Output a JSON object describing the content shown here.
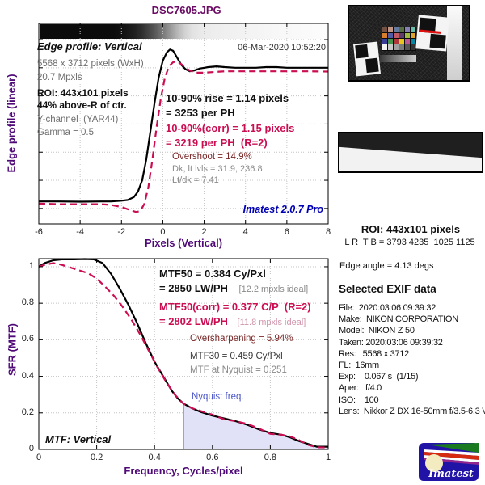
{
  "window_title": "_DSC7605.JPG",
  "colors": {
    "accent_crimson": "#cb0e52",
    "axis_purple": "#4f0a78",
    "title_purple": "#6b0a64",
    "watermark_navy": "#0000b4",
    "overshoot_red": "#7a2828",
    "nyquist_blue": "#4a55c8",
    "nyquist_fill": "#e1e2f8"
  },
  "edge_panel": {
    "title": "Edge profile: Vertical",
    "date": "06-Mar-2020 10:52:20",
    "size_line": "5568 x 3712 pixels (WxH)",
    "mpx_line": "20.7 Mpxls",
    "roi_line1": "ROI: 443x101 pixels",
    "roi_line2": "44% above-R of ctr.",
    "channel_line": "Y-channel  (YAR44)",
    "gamma_line": "Gamma = 0.5",
    "rise_line1": "10-90% rise = 1.14 pixels",
    "rise_line2": "= 3253 per PH",
    "corr_line1": "10-90%(corr) = 1.15 pixels",
    "corr_line2": "= 3219 per PH  (R=2)",
    "overshoot": "Overshoot = 14.9%",
    "levels": "Dk, lt lvls = 31.9, 236.8",
    "ratio": "Lt/dk = 7.41",
    "watermark": "Imatest 2.0.7 Pro",
    "xlabel": "Pixels (Vertical)",
    "ylabel": "Edge profile (linear)"
  },
  "mtf_panel": {
    "mtf50_line1": "MTF50 = 0.384 Cy/Pxl",
    "mtf50_line2": "= 2850 LW/PH",
    "mtf50_note": "[12.2 mpxls ideal]",
    "corr_line1": "MTF50(corr) = 0.377 C/P  (R=2)",
    "corr_line2": "= 2802 LW/PH",
    "corr_note": "[11.8 mpxls ideal]",
    "oversharp": "Oversharpening = 5.94%",
    "mtf30": "MTF30 = 0.459 Cy/Pxl",
    "nyquist_val": "MTF at Nyquist = 0.251",
    "nyquist_label": "Nyquist freq.",
    "corner_label": "MTF: Vertical",
    "xlabel": "Frequency, Cycles/pixel",
    "ylabel": "SFR (MTF)"
  },
  "right_panel": {
    "roi_title": "ROI: 443x101 pixels",
    "roi_coords": "L R  T B = 3793 4235  1025 1125",
    "edge_angle": "Edge angle = 4.13 degs",
    "exif_title": "Selected EXIF data",
    "exif_lines": [
      "File:  2020:03:06 09:39:32",
      "Make:  NIKON CORPORATION",
      "Model:  NIKON Z 50",
      "Taken: 2020:03:06 09:39:32",
      "Res:   5568 x 3712",
      "FL:  16mm",
      "Exp:    0.067 s  (1/15)",
      "Aper:   f/4.0",
      "ISO:    100",
      "Lens:  Nikkor Z DX 16-50mm f/3.5-6.3 V"
    ]
  },
  "logo_text": "Imatest",
  "thumbnail_colors": [
    "#735244",
    "#c29682",
    "#627a9d",
    "#576c43",
    "#8580b1",
    "#67bdaa",
    "#d67e2c",
    "#505ba6",
    "#c15a63",
    "#5e3c6c",
    "#9dbc40",
    "#e0a32e",
    "#383d96",
    "#469449",
    "#af363c",
    "#e7c71f",
    "#bb5695",
    "#0885a1",
    "#f3f3f2",
    "#c8c8c8",
    "#a0a0a0",
    "#7a7a79",
    "#555555",
    "#343434"
  ],
  "chart_data": [
    {
      "type": "line",
      "title": "Edge profile: Vertical",
      "xlabel": "Pixels (Vertical)",
      "ylabel": "Edge profile (linear)",
      "xlim": [
        -6,
        8
      ],
      "ylim": [
        -0.11,
        1.315
      ],
      "xticks": [
        -6,
        -4,
        -2,
        0,
        2,
        4,
        6,
        8
      ],
      "xticklabels": [
        "-6",
        "-4",
        "-2",
        "0",
        "2",
        "4",
        "6",
        "8"
      ],
      "yticks": [
        0,
        0.2,
        0.4,
        0.6,
        0.8,
        1.0,
        1.2
      ],
      "yticklabels": [],
      "grid": true,
      "series": [
        {
          "name": "edge profile (uncorrected)",
          "color": "#000000",
          "dash": "",
          "points": [
            [
              -6,
              0.05
            ],
            [
              -5,
              0.05
            ],
            [
              -4,
              0.048
            ],
            [
              -3,
              0.05
            ],
            [
              -2.5,
              0.05
            ],
            [
              -2,
              0.055
            ],
            [
              -1.7,
              0.06
            ],
            [
              -1.4,
              0.08
            ],
            [
              -1.2,
              0.12
            ],
            [
              -1.0,
              0.2
            ],
            [
              -0.8,
              0.35
            ],
            [
              -0.6,
              0.55
            ],
            [
              -0.4,
              0.75
            ],
            [
              -0.2,
              0.93
            ],
            [
              0,
              1.05
            ],
            [
              0.2,
              1.11
            ],
            [
              0.35,
              1.13
            ],
            [
              0.5,
              1.12
            ],
            [
              0.7,
              1.07
            ],
            [
              0.9,
              1.02
            ],
            [
              1.1,
              0.99
            ],
            [
              1.3,
              0.975
            ],
            [
              1.5,
              0.98
            ],
            [
              1.8,
              0.995
            ],
            [
              2.2,
              1.005
            ],
            [
              2.6,
              1.01
            ],
            [
              3,
              1.005
            ],
            [
              3.5,
              1.0
            ],
            [
              4,
              1.0
            ],
            [
              4.5,
              1.0
            ],
            [
              5,
              1.005
            ],
            [
              5.5,
              1.005
            ],
            [
              6,
              1.0
            ],
            [
              6.5,
              1.0
            ],
            [
              7,
              1.0
            ],
            [
              7.5,
              1.0
            ],
            [
              8,
              1.0
            ]
          ]
        },
        {
          "name": "edge profile corrected (R=2)",
          "color": "#cb0e52",
          "dash": "8 5",
          "points": [
            [
              -6,
              0.035
            ],
            [
              -5,
              0.03
            ],
            [
              -4,
              0.03
            ],
            [
              -3,
              0.03
            ],
            [
              -2.5,
              0.025
            ],
            [
              -2,
              0.01
            ],
            [
              -1.6,
              -0.01
            ],
            [
              -1.3,
              -0.025
            ],
            [
              -1.1,
              -0.02
            ],
            [
              -0.9,
              0.03
            ],
            [
              -0.7,
              0.15
            ],
            [
              -0.5,
              0.35
            ],
            [
              -0.3,
              0.58
            ],
            [
              -0.1,
              0.78
            ],
            [
              0.1,
              0.93
            ],
            [
              0.3,
              1.01
            ],
            [
              0.5,
              1.04
            ],
            [
              0.7,
              1.045
            ],
            [
              0.9,
              1.025
            ],
            [
              1.1,
              1.0
            ],
            [
              1.3,
              0.98
            ],
            [
              1.6,
              0.965
            ],
            [
              2,
              0.965
            ],
            [
              2.5,
              0.97
            ],
            [
              3,
              0.975
            ],
            [
              4,
              0.975
            ],
            [
              5,
              0.975
            ],
            [
              6,
              0.975
            ],
            [
              7,
              0.975
            ],
            [
              8,
              0.973
            ]
          ]
        }
      ],
      "annotations": [
        "10-90% rise = 1.14 pixels = 3253 per PH",
        "10-90%(corr) = 1.15 pixels = 3219 per PH (R=2)",
        "Overshoot = 14.9%",
        "Dk, lt lvls = 31.9, 236.8",
        "Lt/dk = 7.41"
      ]
    },
    {
      "type": "line",
      "title": "MTF: Vertical",
      "xlabel": "Frequency, Cycles/pixel",
      "ylabel": "SFR (MTF)",
      "xlim": [
        0,
        1
      ],
      "ylim": [
        0,
        1.044
      ],
      "xticks": [
        0,
        0.2,
        0.4,
        0.6,
        0.8,
        1
      ],
      "xticklabels": [
        "0",
        "0.2",
        "0.4",
        "0.6",
        "0.8",
        "1"
      ],
      "yticks": [
        0,
        0.2,
        0.4,
        0.6,
        0.8,
        1
      ],
      "yticklabels": [
        "0",
        "0.2",
        "0.4",
        "0.6",
        "0.8",
        "1"
      ],
      "grid": true,
      "nyquist": {
        "x": 0.5,
        "y_at": 0.251,
        "fill": "#e1e2f8",
        "line_color": "#9aa0dc"
      },
      "series": [
        {
          "name": "MTF (uncorrected)",
          "color": "#000000",
          "dash": "",
          "points": [
            [
              0,
              1.0
            ],
            [
              0.02,
              1.02
            ],
            [
              0.05,
              1.035
            ],
            [
              0.08,
              1.04
            ],
            [
              0.12,
              1.04
            ],
            [
              0.16,
              1.042
            ],
            [
              0.19,
              1.04
            ],
            [
              0.22,
              1.02
            ],
            [
              0.25,
              0.96
            ],
            [
              0.28,
              0.88
            ],
            [
              0.31,
              0.79
            ],
            [
              0.34,
              0.69
            ],
            [
              0.37,
              0.58
            ],
            [
              0.4,
              0.48
            ],
            [
              0.43,
              0.4
            ],
            [
              0.46,
              0.32
            ],
            [
              0.48,
              0.28
            ],
            [
              0.5,
              0.251
            ],
            [
              0.53,
              0.225
            ],
            [
              0.56,
              0.205
            ],
            [
              0.6,
              0.185
            ],
            [
              0.64,
              0.17
            ],
            [
              0.68,
              0.155
            ],
            [
              0.72,
              0.135
            ],
            [
              0.76,
              0.11
            ],
            [
              0.8,
              0.09
            ],
            [
              0.84,
              0.08
            ],
            [
              0.87,
              0.065
            ],
            [
              0.9,
              0.045
            ],
            [
              0.93,
              0.03
            ],
            [
              0.96,
              0.015
            ],
            [
              1.0,
              0.015
            ]
          ]
        },
        {
          "name": "MTF corrected (R=2)",
          "color": "#cb0e52",
          "dash": "8 5",
          "points": [
            [
              0,
              1.0
            ],
            [
              0.02,
              1.01
            ],
            [
              0.05,
              1.02
            ],
            [
              0.08,
              1.01
            ],
            [
              0.11,
              0.995
            ],
            [
              0.14,
              0.98
            ],
            [
              0.17,
              0.965
            ],
            [
              0.2,
              0.935
            ],
            [
              0.23,
              0.89
            ],
            [
              0.26,
              0.84
            ],
            [
              0.29,
              0.78
            ],
            [
              0.32,
              0.71
            ],
            [
              0.35,
              0.63
            ],
            [
              0.38,
              0.54
            ],
            [
              0.41,
              0.45
            ],
            [
              0.44,
              0.37
            ],
            [
              0.47,
              0.3
            ],
            [
              0.5,
              0.25
            ],
            [
              0.53,
              0.225
            ],
            [
              0.56,
              0.21
            ],
            [
              0.6,
              0.19
            ],
            [
              0.64,
              0.165
            ],
            [
              0.68,
              0.155
            ],
            [
              0.72,
              0.14
            ],
            [
              0.76,
              0.115
            ],
            [
              0.8,
              0.085
            ],
            [
              0.84,
              0.08
            ],
            [
              0.87,
              0.07
            ],
            [
              0.9,
              0.05
            ],
            [
              0.93,
              0.025
            ],
            [
              0.96,
              0.012
            ],
            [
              1.0,
              0.01
            ]
          ]
        }
      ],
      "annotations": [
        "MTF50 = 0.384 Cy/Pxl = 2850 LW/PH [12.2 mpxls ideal]",
        "MTF50(corr) = 0.377 C/P (R=2) = 2802 LW/PH [11.8 mpxls ideal]",
        "Oversharpening = 5.94%",
        "MTF30 = 0.459 Cy/Pxl",
        "MTF at Nyquist = 0.251"
      ]
    }
  ]
}
